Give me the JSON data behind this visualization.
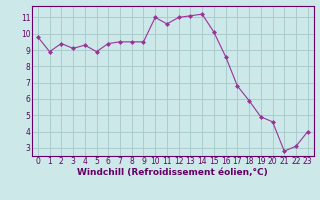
{
  "x": [
    0,
    1,
    2,
    3,
    4,
    5,
    6,
    7,
    8,
    9,
    10,
    11,
    12,
    13,
    14,
    15,
    16,
    17,
    18,
    19,
    20,
    21,
    22,
    23
  ],
  "y": [
    9.8,
    8.9,
    9.4,
    9.1,
    9.3,
    8.9,
    9.4,
    9.5,
    9.5,
    9.5,
    11.0,
    10.6,
    11.0,
    11.1,
    11.2,
    10.1,
    8.6,
    6.8,
    5.9,
    4.9,
    4.6,
    2.8,
    3.1,
    4.0
  ],
  "line_color": "#993399",
  "marker": "D",
  "marker_size": 2.0,
  "bg_color": "#cce8e8",
  "grid_color": "#aacccc",
  "xlabel": "Windchill (Refroidissement éolien,°C)",
  "ylim_min": 2.5,
  "ylim_max": 11.7,
  "yticks": [
    3,
    4,
    5,
    6,
    7,
    8,
    9,
    10,
    11
  ],
  "xticks": [
    0,
    1,
    2,
    3,
    4,
    5,
    6,
    7,
    8,
    9,
    10,
    11,
    12,
    13,
    14,
    15,
    16,
    17,
    18,
    19,
    20,
    21,
    22,
    23
  ],
  "font_color": "#660066",
  "axis_color": "#660066",
  "tick_fontsize": 5.5,
  "xlabel_fontsize": 6.5,
  "linewidth": 0.8
}
